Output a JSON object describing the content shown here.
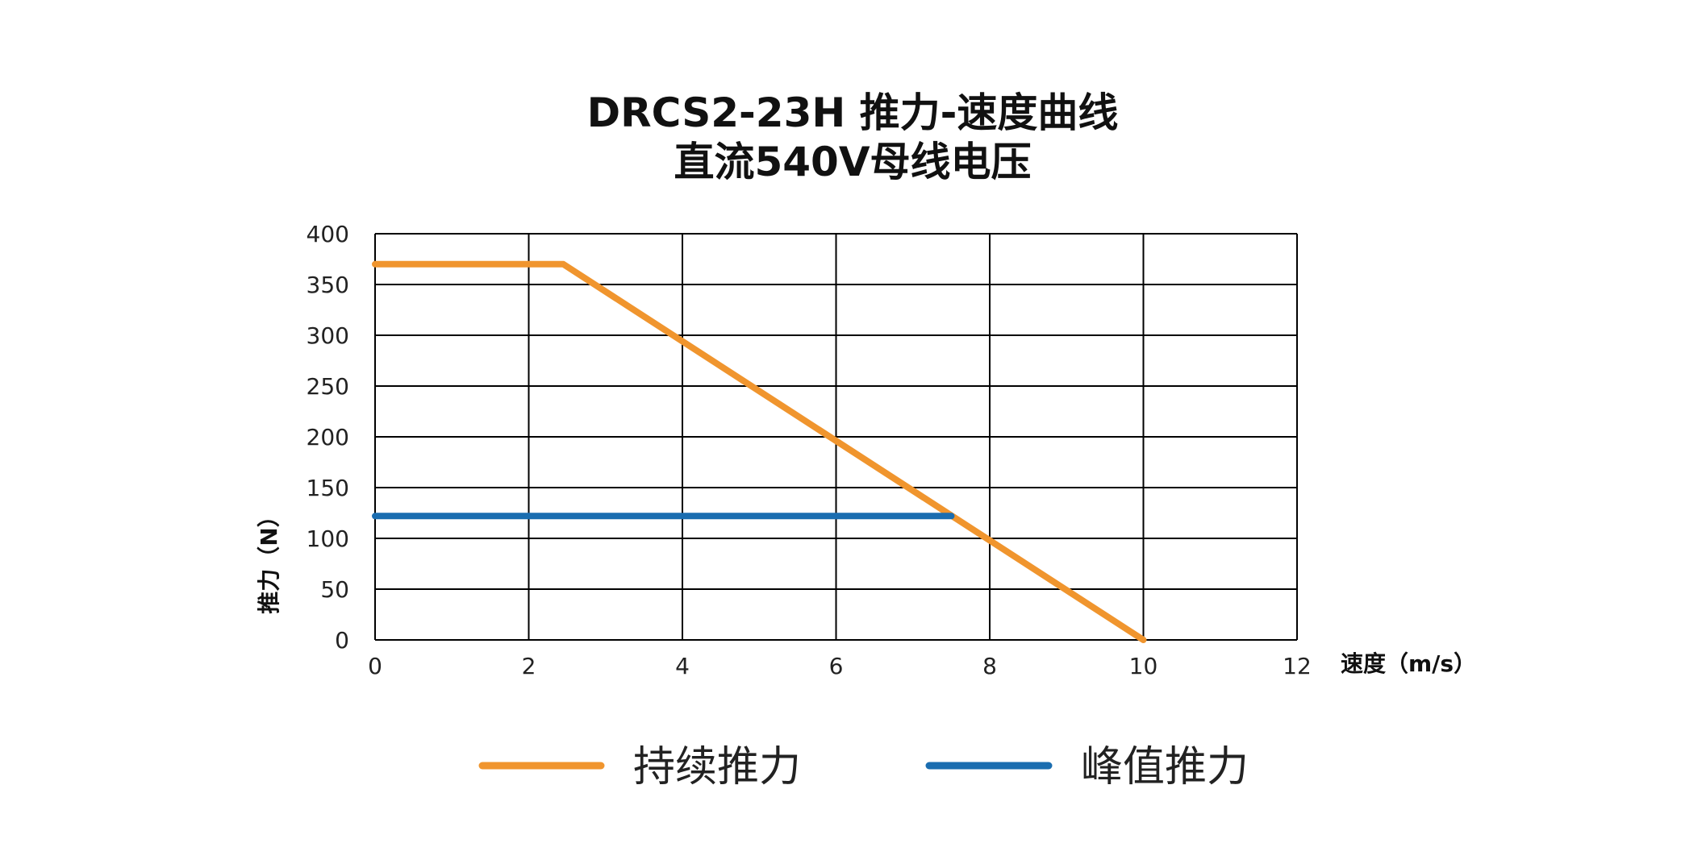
{
  "chart_data": {
    "type": "line",
    "title": "DRCS2-23H 推力-速度曲线",
    "subtitle": "直流540V母线电压",
    "xlabel": "速度（m/s）",
    "ylabel": "推力（N）",
    "xlim": [
      0,
      12
    ],
    "ylim": [
      0,
      400
    ],
    "x_ticks": [
      0,
      2,
      4,
      6,
      8,
      10,
      12
    ],
    "y_ticks": [
      0,
      50,
      100,
      150,
      200,
      250,
      300,
      350,
      400
    ],
    "grid": true,
    "legend_position": "bottom",
    "series": [
      {
        "name": "持续推力",
        "color": "#F0952E",
        "points": [
          [
            0,
            370
          ],
          [
            2.45,
            370
          ],
          [
            10,
            0
          ]
        ]
      },
      {
        "name": "峰值推力",
        "color": "#1A6DB0",
        "points": [
          [
            0,
            122
          ],
          [
            7.5,
            122
          ]
        ]
      }
    ]
  }
}
